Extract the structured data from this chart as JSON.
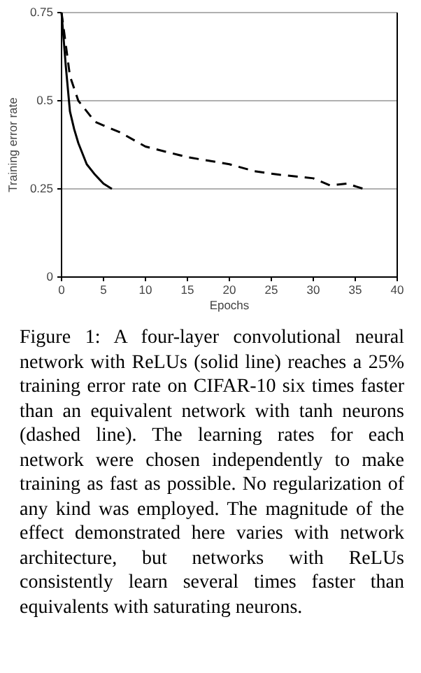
{
  "chart_data": {
    "type": "line",
    "xlabel": "Epochs",
    "ylabel": "Training error rate",
    "xlim": [
      0,
      40
    ],
    "xticks": [
      0,
      5,
      10,
      15,
      20,
      25,
      30,
      35,
      40
    ],
    "ylim": [
      0,
      0.75
    ],
    "yticks": [
      0,
      0.25,
      0.5,
      0.75
    ],
    "grid": "y",
    "series": [
      {
        "color": "#000000",
        "line_style": "solid",
        "x": [
          0,
          0.5,
          1,
          1.5,
          2,
          3,
          4,
          5,
          6
        ],
        "values": [
          0.75,
          0.6,
          0.47,
          0.42,
          0.38,
          0.32,
          0.29,
          0.265,
          0.25
        ]
      },
      {
        "color": "#000000",
        "line_style": "dashed",
        "x": [
          0,
          1,
          2,
          3,
          4,
          5,
          7,
          10,
          15,
          20,
          23,
          26,
          30,
          32,
          34,
          36
        ],
        "values": [
          0.75,
          0.57,
          0.5,
          0.47,
          0.44,
          0.43,
          0.41,
          0.37,
          0.34,
          0.32,
          0.3,
          0.29,
          0.28,
          0.26,
          0.265,
          0.25
        ]
      }
    ],
    "annotations": [
      "Figure 1: A four-layer convolutional neural network with ReLUs (solid line) reaches a 25% training error rate on CIFAR-10 six times faster than an equivalent network with tanh neurons (dashed line). The learning rates for each network were chosen independently to make training as fast as possible. No regularization of any kind was employed. The magnitude of the effect demonstrated here varies with network architecture, but networks with ReLUs consistently learn several times faster than equivalents with saturating neurons."
    ]
  }
}
